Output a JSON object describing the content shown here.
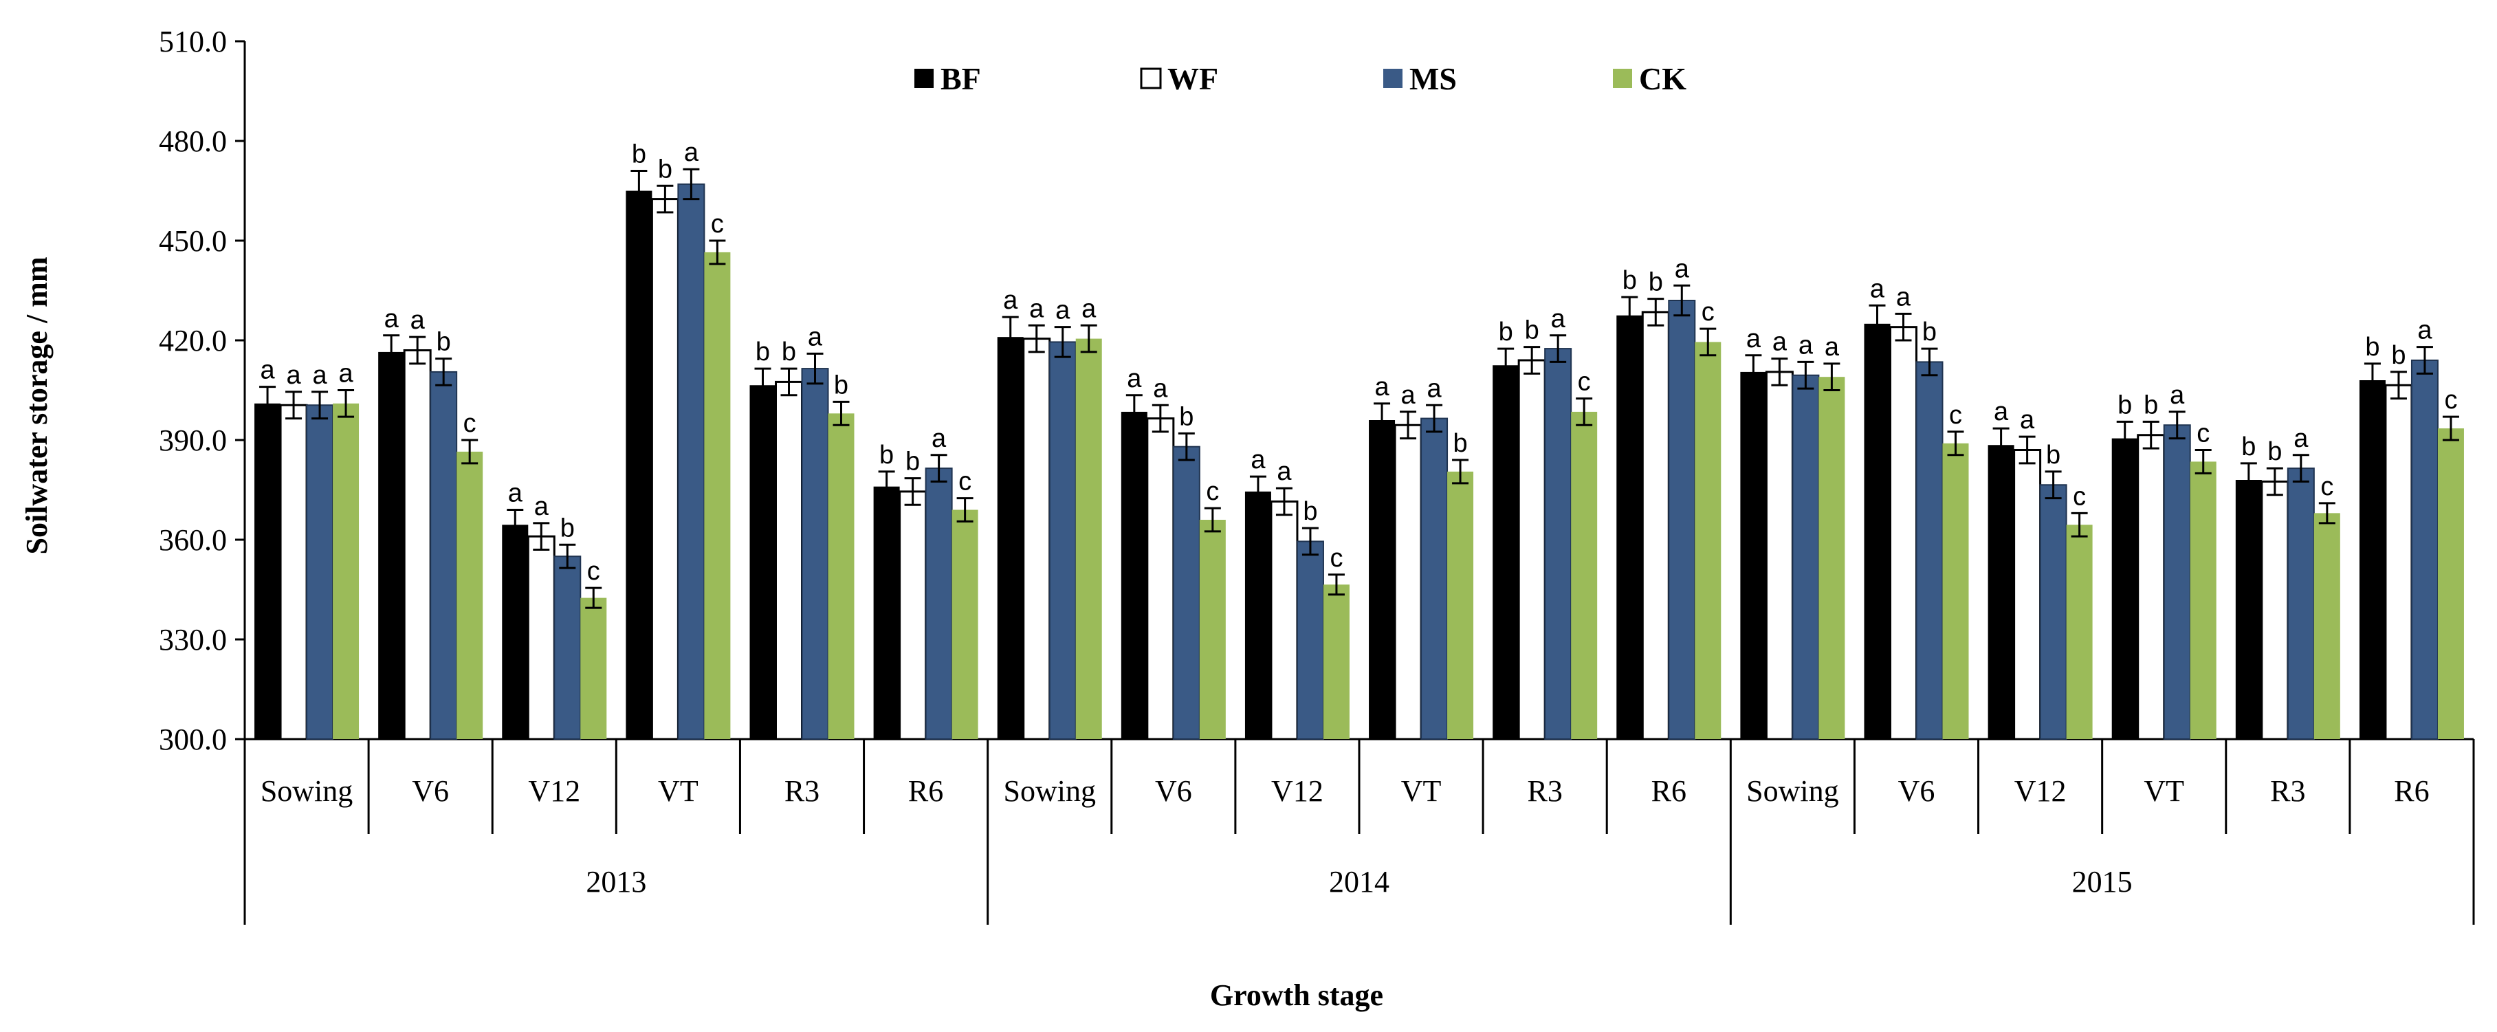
{
  "chart_data": {
    "type": "bar",
    "title": "",
    "xlabel": "Growth stage",
    "ylabel": "Soilwater storage / mm",
    "ylim": [
      300,
      510
    ],
    "yticks": [
      "300.0",
      "330.0",
      "360.0",
      "390.0",
      "420.0",
      "450.0",
      "480.0",
      "510.0"
    ],
    "legend_position": "top-center",
    "years": [
      "2013",
      "2014",
      "2015"
    ],
    "stages": [
      "Sowing",
      "V6",
      "V12",
      "VT",
      "R3",
      "R6"
    ],
    "categories": [
      "Sowing",
      "V6",
      "V12",
      "VT",
      "R3",
      "R6",
      "Sowing",
      "V6",
      "V12",
      "VT",
      "R3",
      "R6",
      "Sowing",
      "V6",
      "V12",
      "VT",
      "R3",
      "R6"
    ],
    "series": [
      {
        "name": "BF",
        "color": "#000000",
        "marker": "filled-black",
        "values": [
          401,
          416.5,
          364.5,
          465,
          406.5,
          376,
          421,
          398.5,
          374.5,
          396,
          412.5,
          427.5,
          410.5,
          425,
          388.5,
          390.5,
          378,
          408
        ],
        "errors": [
          5,
          5,
          4.5,
          6,
          5,
          4.5,
          6,
          5,
          4.5,
          5,
          5,
          5.5,
          5,
          5.5,
          5,
          5,
          5,
          5
        ],
        "labels": [
          "a",
          "a",
          "a",
          "b",
          "b",
          "b",
          "a",
          "a",
          "a",
          "a",
          "b",
          "b",
          "a",
          "a",
          "a",
          "b",
          "b",
          "b"
        ]
      },
      {
        "name": "WF",
        "color": "#ffffff",
        "marker": "hollow",
        "values": [
          400.5,
          417,
          361,
          462.5,
          407.5,
          374.5,
          420.5,
          396.5,
          371.5,
          394.5,
          414,
          428.5,
          410.5,
          424,
          387,
          391.5,
          377.5,
          406.5
        ],
        "errors": [
          4,
          4,
          4,
          4,
          4,
          4,
          4,
          4,
          4,
          4,
          4,
          4,
          4,
          4,
          4,
          4,
          4,
          4
        ],
        "labels": [
          "a",
          "a",
          "a",
          "b",
          "b",
          "b",
          "a",
          "a",
          "a",
          "a",
          "b",
          "b",
          "a",
          "a",
          "a",
          "b",
          "b",
          "b"
        ]
      },
      {
        "name": "MS",
        "color": "#3a5a86",
        "marker": "blue",
        "values": [
          400.5,
          410.5,
          355,
          467,
          411.5,
          381.5,
          419.5,
          388,
          359.5,
          396.5,
          417.5,
          432,
          409.5,
          413.5,
          376.5,
          394.5,
          381.5,
          414
        ],
        "errors": [
          4,
          4,
          3.5,
          4.5,
          4.5,
          4,
          4.5,
          4,
          4,
          4,
          4,
          4.5,
          4,
          4,
          4,
          4,
          4,
          4
        ],
        "labels": [
          "a",
          "b",
          "b",
          "a",
          "a",
          "a",
          "a",
          "b",
          "b",
          "a",
          "a",
          "a",
          "a",
          "b",
          "b",
          "a",
          "a",
          "a"
        ]
      },
      {
        "name": "CK",
        "color": "#9bbb59",
        "marker": "green",
        "values": [
          401,
          386.5,
          342.5,
          446.5,
          398,
          369,
          420.5,
          366,
          346.5,
          380.5,
          398.5,
          419.5,
          409,
          389,
          364.5,
          383.5,
          368,
          393.5
        ],
        "errors": [
          4,
          3.5,
          3,
          3.5,
          3.5,
          3.5,
          4,
          3.5,
          3,
          3.5,
          4,
          4,
          4,
          3.5,
          3.5,
          3.5,
          3,
          3.5
        ],
        "labels": [
          "a",
          "c",
          "c",
          "c",
          "b",
          "c",
          "a",
          "c",
          "c",
          "b",
          "c",
          "c",
          "a",
          "c",
          "c",
          "c",
          "c",
          "c"
        ]
      }
    ]
  }
}
